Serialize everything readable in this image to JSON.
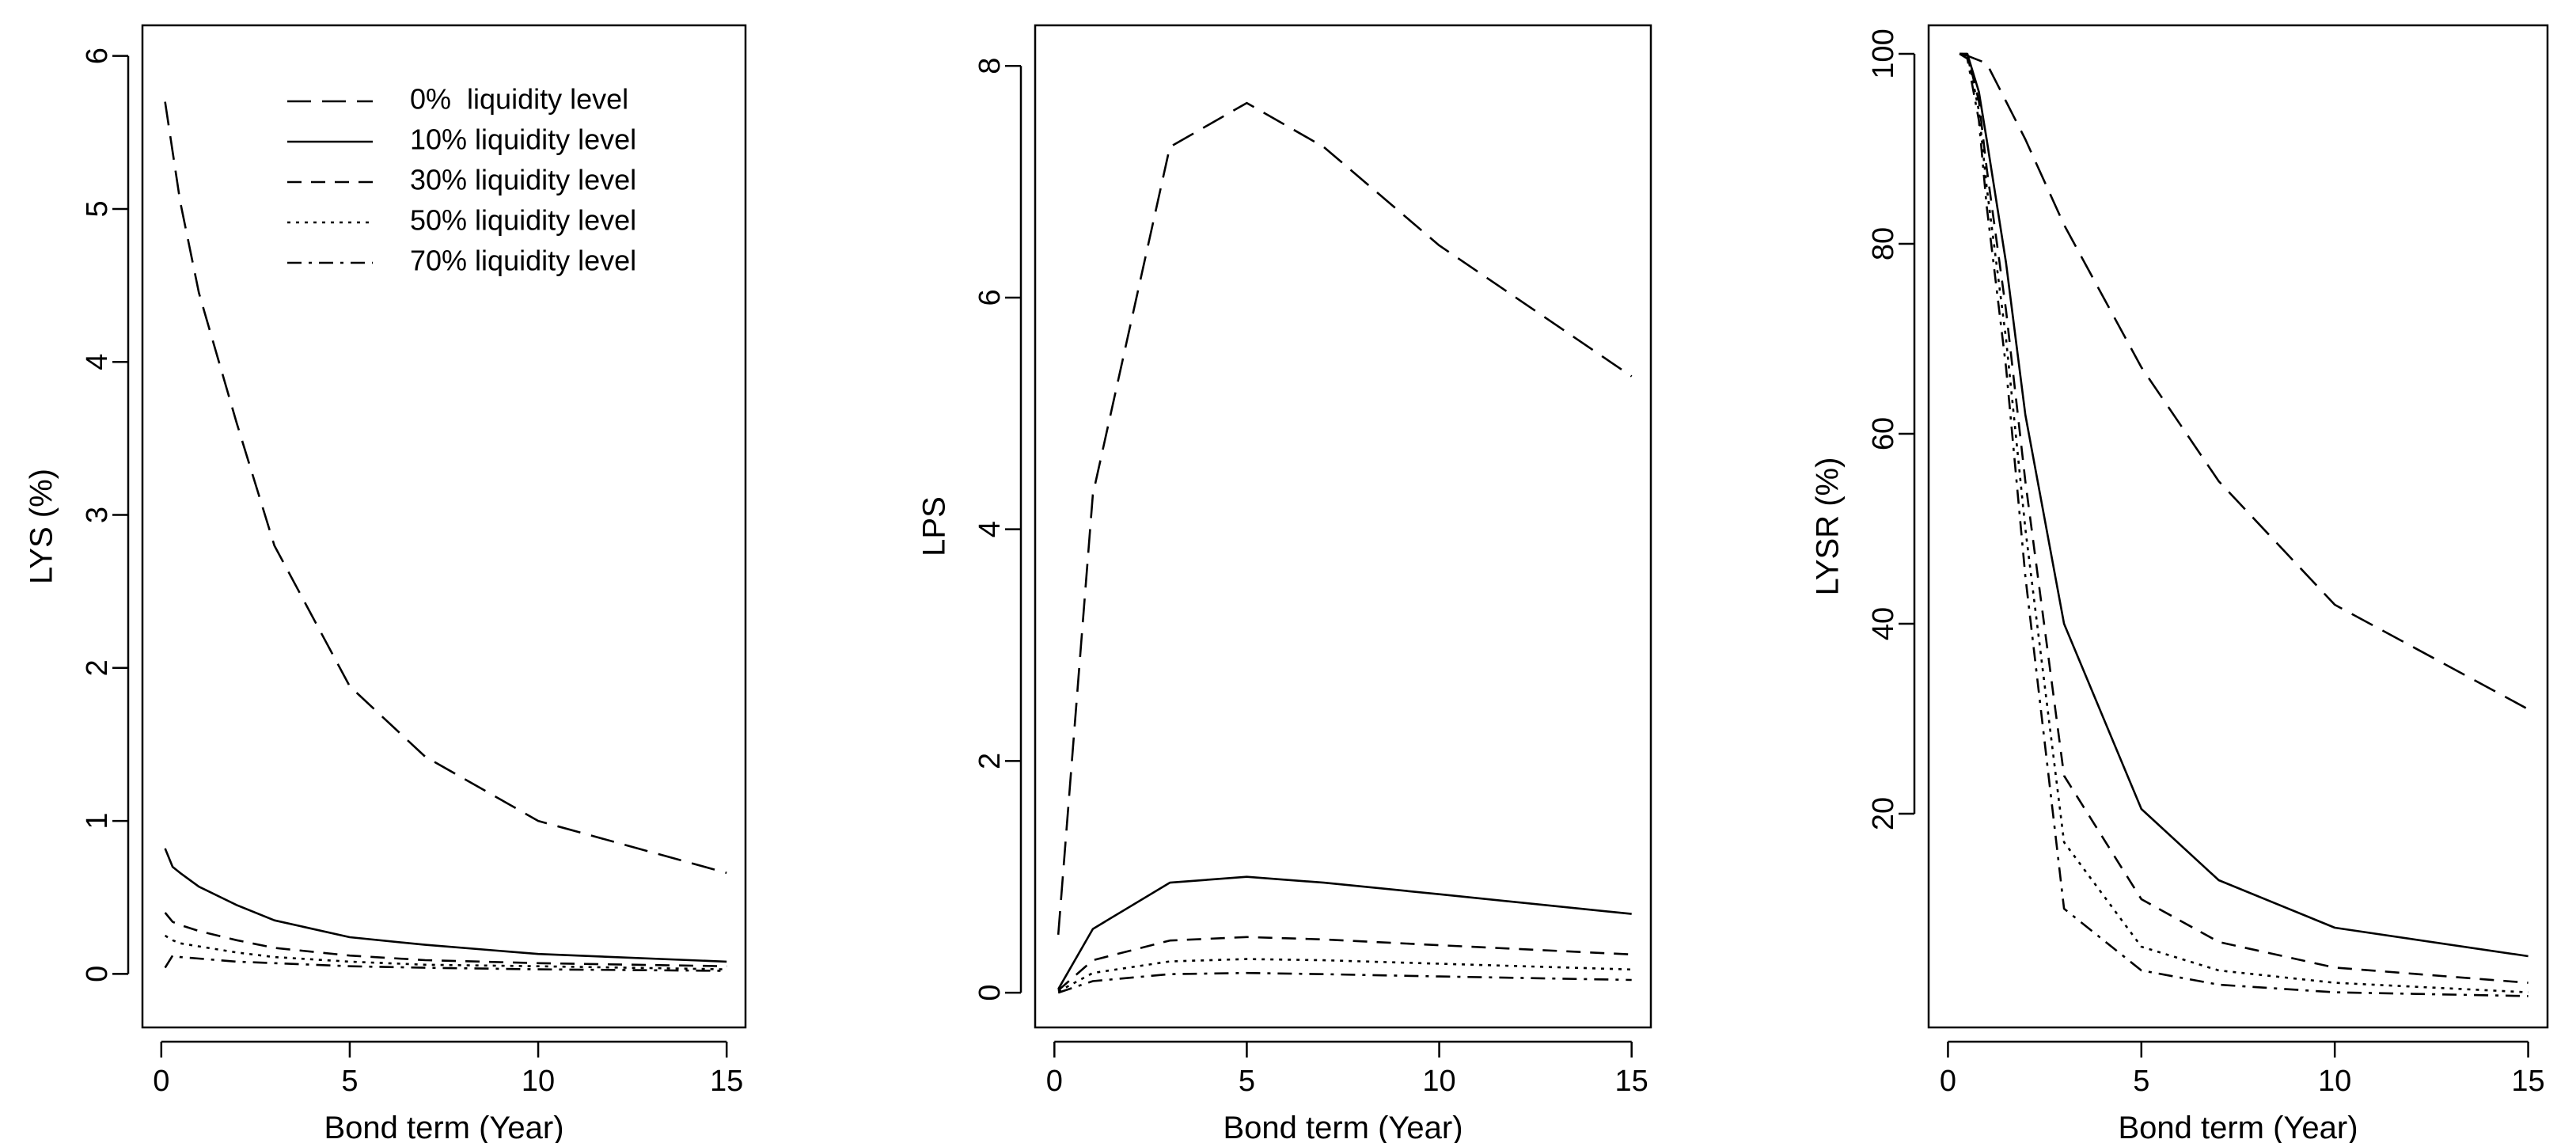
{
  "chart_data": [
    {
      "type": "line",
      "xlabel": "Bond term (Year)",
      "ylabel": "LYS (%)",
      "xlim": [
        -0.5,
        15.5
      ],
      "ylim": [
        -0.35,
        6.2
      ],
      "xticks": [
        0,
        5,
        10,
        15
      ],
      "yticks": [
        0,
        1,
        2,
        3,
        4,
        5,
        6
      ],
      "grid": false,
      "legend_position": "top-center",
      "series": [
        {
          "name": "0%  liquidity level",
          "dash": "long",
          "x": [
            0.1,
            0.5,
            1,
            2,
            3,
            5,
            7,
            10,
            15
          ],
          "y": [
            5.7,
            5.05,
            4.45,
            3.6,
            2.8,
            1.88,
            1.42,
            1.0,
            0.66
          ]
        },
        {
          "name": "10% liquidity level",
          "dash": "solid",
          "x": [
            0.1,
            0.3,
            0.5,
            1,
            2,
            3,
            5,
            7,
            10,
            15
          ],
          "y": [
            0.82,
            0.7,
            0.66,
            0.57,
            0.45,
            0.35,
            0.24,
            0.19,
            0.13,
            0.08
          ]
        },
        {
          "name": "30% liquidity level",
          "dash": "medium",
          "x": [
            0.1,
            0.3,
            0.5,
            1,
            2,
            3,
            5,
            7,
            10,
            15
          ],
          "y": [
            0.4,
            0.34,
            0.32,
            0.28,
            0.22,
            0.17,
            0.12,
            0.09,
            0.07,
            0.05
          ]
        },
        {
          "name": "50% liquidity level",
          "dash": "dotted",
          "x": [
            0.1,
            0.3,
            0.5,
            1,
            2,
            3,
            5,
            7,
            10,
            15
          ],
          "y": [
            0.25,
            0.22,
            0.2,
            0.18,
            0.14,
            0.11,
            0.08,
            0.06,
            0.05,
            0.03
          ]
        },
        {
          "name": "70% liquidity level",
          "dash": "dotdash",
          "x": [
            0.1,
            0.3,
            0.5,
            1,
            2,
            3,
            5,
            7,
            10,
            15
          ],
          "y": [
            0.04,
            0.12,
            0.11,
            0.1,
            0.08,
            0.07,
            0.05,
            0.04,
            0.03,
            0.02
          ]
        }
      ]
    },
    {
      "type": "line",
      "xlabel": "Bond term (Year)",
      "ylabel": "LPS",
      "xlim": [
        -0.5,
        15.5
      ],
      "ylim": [
        -0.3,
        8.35
      ],
      "xticks": [
        0,
        5,
        10,
        15
      ],
      "yticks": [
        0,
        2,
        4,
        6,
        8
      ],
      "grid": false,
      "series": [
        {
          "dash": "long",
          "x": [
            0.1,
            1,
            3,
            5,
            7,
            10,
            15
          ],
          "y": [
            0.5,
            4.3,
            7.3,
            7.68,
            7.3,
            6.45,
            5.32
          ]
        },
        {
          "dash": "solid",
          "x": [
            0.1,
            1,
            3,
            5,
            7,
            10,
            15
          ],
          "y": [
            0.03,
            0.55,
            0.95,
            1.0,
            0.95,
            0.85,
            0.68
          ]
        },
        {
          "dash": "medium",
          "x": [
            0.1,
            1,
            3,
            5,
            7,
            10,
            15
          ],
          "y": [
            0.02,
            0.28,
            0.45,
            0.48,
            0.46,
            0.41,
            0.33
          ]
        },
        {
          "dash": "dotted",
          "x": [
            0.1,
            1,
            3,
            5,
            7,
            10,
            15
          ],
          "y": [
            0.01,
            0.17,
            0.27,
            0.29,
            0.28,
            0.25,
            0.2
          ]
        },
        {
          "dash": "dotdash",
          "x": [
            0.1,
            1,
            3,
            5,
            7,
            10,
            15
          ],
          "y": [
            0.0,
            0.1,
            0.16,
            0.17,
            0.16,
            0.14,
            0.11
          ]
        }
      ]
    },
    {
      "type": "line",
      "xlabel": "Bond term (Year)",
      "ylabel": "LYSR (%)",
      "xlim": [
        -0.5,
        15.5
      ],
      "ylim": [
        -2.5,
        103
      ],
      "xticks": [
        0,
        5,
        10,
        15
      ],
      "yticks": [
        20,
        40,
        60,
        80,
        100
      ],
      "grid": false,
      "series": [
        {
          "dash": "long",
          "x": [
            0.3,
            0.5,
            1,
            2,
            3,
            5,
            7,
            10,
            15
          ],
          "y": [
            100,
            99.8,
            99,
            91,
            82,
            67,
            55,
            42,
            31
          ]
        },
        {
          "dash": "solid",
          "x": [
            0.3,
            0.5,
            0.8,
            1,
            1.5,
            2,
            3,
            5,
            7,
            10,
            15
          ],
          "y": [
            100,
            100,
            96,
            91,
            78,
            62,
            40,
            20.5,
            13,
            8,
            5
          ]
        },
        {
          "dash": "medium",
          "x": [
            0.3,
            0.5,
            0.8,
            1,
            1.5,
            2,
            3,
            5,
            7,
            10,
            15
          ],
          "y": [
            100,
            100,
            95,
            88,
            73,
            55,
            24,
            11,
            6.5,
            3.8,
            2.2
          ]
        },
        {
          "dash": "dotted",
          "x": [
            0.3,
            0.5,
            0.8,
            1,
            1.5,
            2,
            3,
            5,
            7,
            10,
            15
          ],
          "y": [
            100,
            100,
            94,
            86,
            70,
            50,
            17,
            6,
            3.5,
            2.2,
            1.2
          ]
        },
        {
          "dash": "dotdash",
          "x": [
            0.3,
            0.5,
            0.8,
            1,
            1.5,
            2,
            3,
            5,
            7,
            10,
            15
          ],
          "y": [
            100,
            99.5,
            93,
            84,
            67,
            45,
            10,
            3.5,
            2,
            1.2,
            0.8
          ]
        }
      ]
    }
  ]
}
